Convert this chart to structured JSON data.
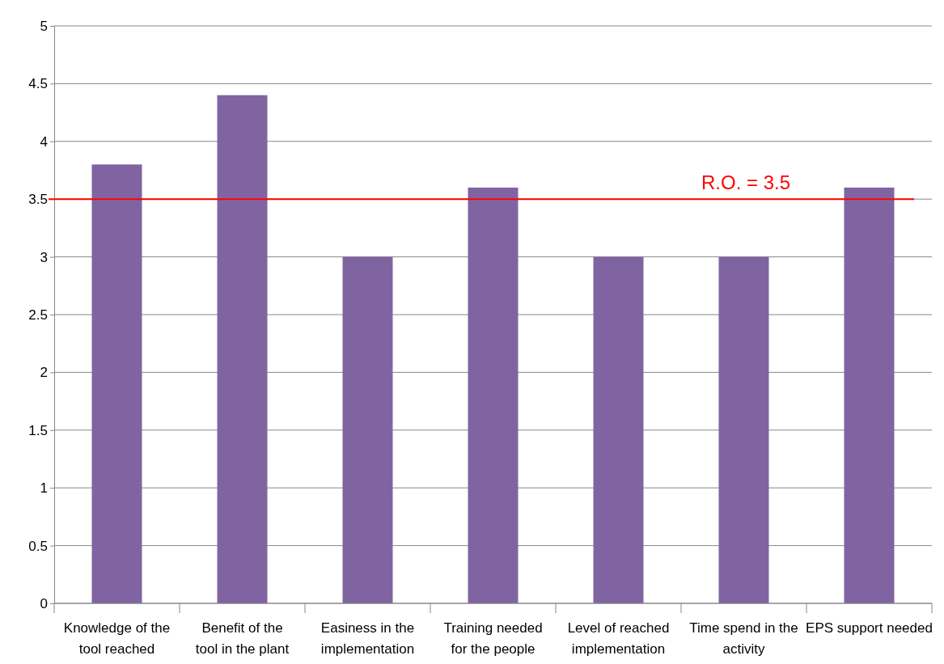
{
  "chart_data": {
    "type": "bar",
    "categories": [
      "Knowledge of the tool reached",
      "Benefit of the tool in the plant",
      "Easiness in the implementation",
      "Training needed for the people",
      "Level of reached implementation",
      "Time spend in the activity",
      "EPS support needed"
    ],
    "values": [
      3.8,
      4.4,
      3,
      3.6,
      3,
      3,
      3.6
    ],
    "color": "#8064a2",
    "ylim": [
      0,
      5
    ],
    "yticks": [
      0,
      0.5,
      1,
      1.5,
      2,
      2.5,
      3,
      3.5,
      4,
      4.5,
      5
    ],
    "grid": "y",
    "ref_lines": [
      {
        "axis": "y",
        "value": 3.5,
        "label": "R.O. = 3.5",
        "color": "#ff0000"
      }
    ]
  }
}
